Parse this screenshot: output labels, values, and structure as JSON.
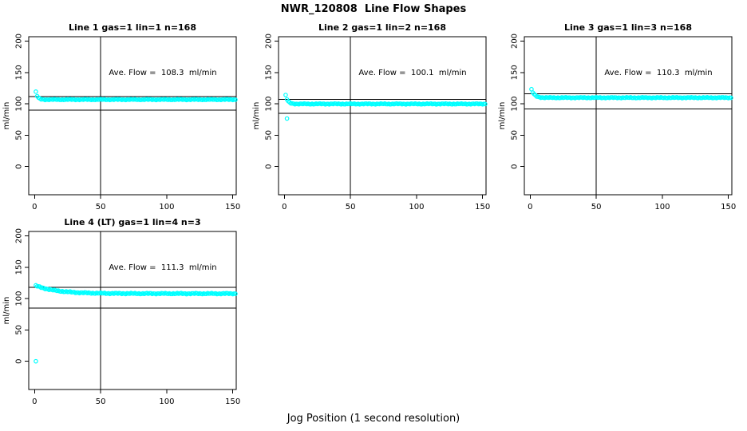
{
  "chart_data": {
    "type": "scatter",
    "title": "NWR_120808  Line Flow Shapes",
    "xlabel": "Jog Position (1 second resolution)",
    "ylabel": "ml/min",
    "x_ticks": [
      0,
      50,
      100,
      150
    ],
    "y_ticks": [
      0,
      50,
      100,
      150,
      200
    ],
    "x_range": [
      -4.4,
      152.6
    ],
    "y_range": [
      -45,
      207
    ],
    "grid": false,
    "legend": "none",
    "point_color": "#00FFFF",
    "axis_color": "#000000",
    "marker": "open-circle",
    "panels": [
      {
        "title": "Line 1 gas=1 lin=1 n=168",
        "line": 1,
        "gas": 1,
        "lin": 1,
        "n": 168,
        "ave_flow": 108.3,
        "annotation": "Ave. Flow =  108.3  ml/min",
        "annotation_pos": [
          97,
          147
        ],
        "ref_lines_h": [
          111.5,
          90
        ],
        "ref_line_v": 50,
        "series": {
          "x_start": 1,
          "x_end": 152,
          "start_value": 118.8,
          "steady_value": 106.8,
          "decay_tau": 1.3,
          "jitter": 0.5
        },
        "outlier_points": []
      },
      {
        "title": "Line 2 gas=1 lin=2 n=168",
        "line": 2,
        "gas": 1,
        "lin": 2,
        "n": 168,
        "ave_flow": 100.1,
        "annotation": "Ave. Flow =  100.1  ml/min",
        "annotation_pos": [
          97,
          147
        ],
        "ref_lines_h": [
          107,
          85
        ],
        "ref_line_v": 50,
        "series": {
          "x_start": 1,
          "x_end": 152,
          "start_value": 113.5,
          "steady_value": 99.8,
          "decay_tau": 1.6,
          "jitter": 0.5
        },
        "outlier_points": [
          [
            2,
            76.5
          ]
        ]
      },
      {
        "title": "Line 3 gas=1 lin=3 n=168",
        "line": 3,
        "gas": 1,
        "lin": 3,
        "n": 168,
        "ave_flow": 110.3,
        "annotation": "Ave. Flow =  110.3  ml/min",
        "annotation_pos": [
          97,
          147
        ],
        "ref_lines_h": [
          116,
          92
        ],
        "ref_line_v": 50,
        "series": {
          "x_start": 1,
          "x_end": 152,
          "start_value": 122.8,
          "steady_value": 109.8,
          "decay_tau": 2.2,
          "jitter": 0.5
        },
        "outlier_points": []
      },
      {
        "title": "Line 4 (LT) gas=1 lin=4 n=3",
        "line": 4,
        "gas": 1,
        "lin": 4,
        "n": 3,
        "ave_flow": 111.3,
        "annotation": "Ave. Flow =  111.3  ml/min",
        "annotation_pos": [
          97,
          147
        ],
        "ref_lines_h": [
          118,
          85
        ],
        "ref_line_v": 50,
        "series": {
          "x_start": 1,
          "x_end": 152,
          "start_value": 120.5,
          "steady_value": 107.9,
          "decay_tau": 16,
          "jitter": 0.6
        },
        "outlier_points": [
          [
            1,
            0
          ]
        ]
      }
    ]
  }
}
